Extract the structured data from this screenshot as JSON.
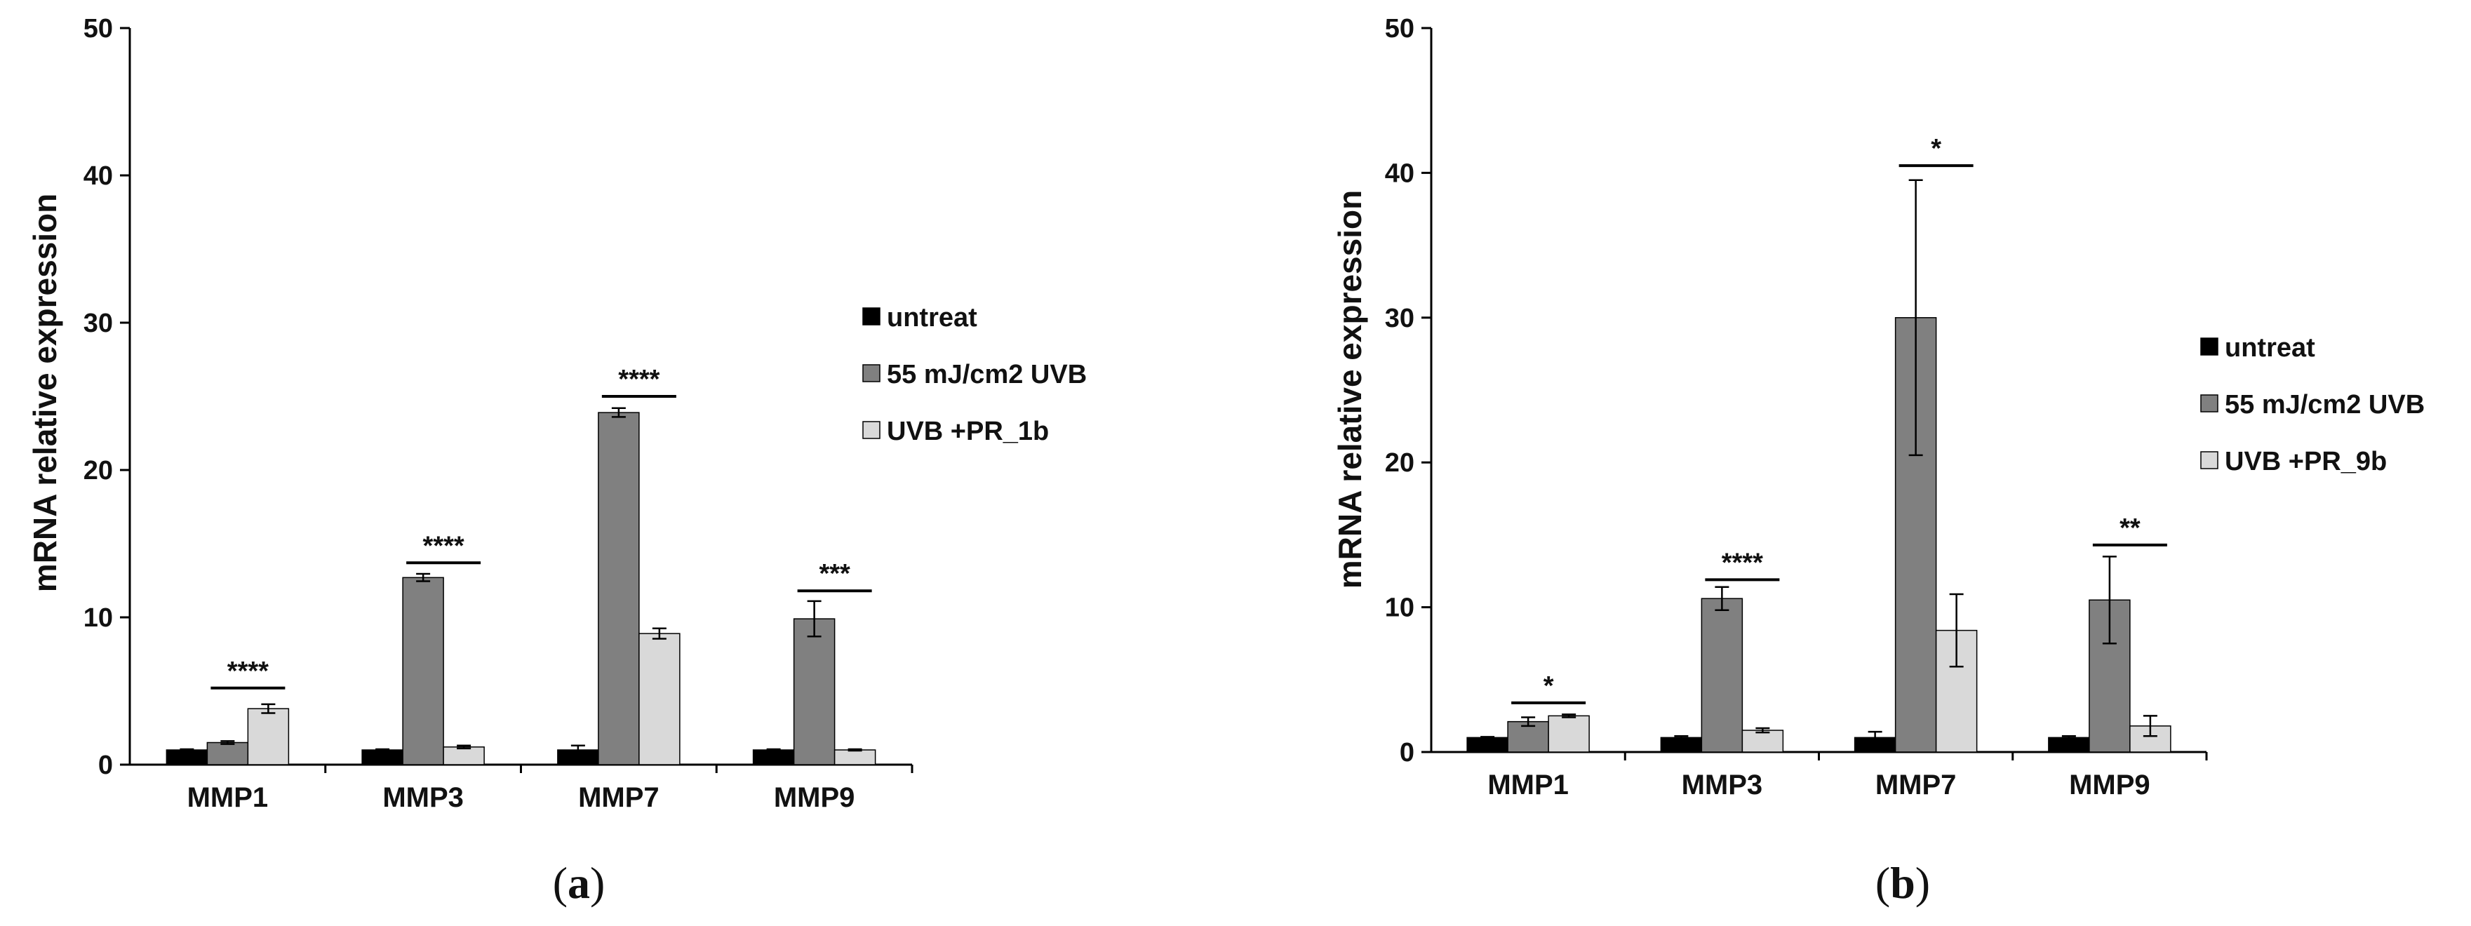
{
  "chart_data": [
    {
      "type": "bar",
      "panel": "(a)",
      "ylabel": "mRNA relative expression",
      "ylim": [
        0,
        50
      ],
      "yticks": [
        0,
        10,
        20,
        30,
        40,
        50
      ],
      "categories": [
        "MMP1",
        "MMP3",
        "MMP7",
        "MMP9"
      ],
      "series": [
        {
          "name": "untreat",
          "color": "#000000",
          "values": [
            1.0,
            1.0,
            1.0,
            1.0
          ],
          "errors": [
            0.05,
            0.05,
            0.3,
            0.05
          ]
        },
        {
          "name": "55 mJ/cm2 UVB",
          "color": "#808080",
          "values": [
            1.5,
            12.7,
            23.9,
            9.9
          ],
          "errors": [
            0.1,
            0.25,
            0.3,
            1.2
          ]
        },
        {
          "name": "UVB +PR_1b",
          "color": "#d9d9d9",
          "values": [
            3.8,
            1.2,
            8.9,
            1.0
          ],
          "errors": [
            0.3,
            0.1,
            0.35,
            0.05
          ]
        }
      ],
      "significance": [
        {
          "category": "MMP1",
          "y": 5.2,
          "label": "****"
        },
        {
          "category": "MMP3",
          "y": 13.7,
          "label": "****"
        },
        {
          "category": "MMP7",
          "y": 25.0,
          "label": "****"
        },
        {
          "category": "MMP9",
          "y": 11.8,
          "label": "***"
        }
      ],
      "legend": "right"
    },
    {
      "type": "bar",
      "panel": "(b)",
      "ylabel": "mRNA relative expression",
      "ylim": [
        0,
        50
      ],
      "yticks": [
        0,
        10,
        20,
        30,
        40,
        50
      ],
      "categories": [
        "MMP1",
        "MMP3",
        "MMP7",
        "MMP9"
      ],
      "series": [
        {
          "name": "untreat",
          "color": "#000000",
          "values": [
            1.0,
            1.0,
            1.0,
            1.0
          ],
          "errors": [
            0.05,
            0.1,
            0.4,
            0.1
          ]
        },
        {
          "name": "55 mJ/cm2 UVB",
          "color": "#808080",
          "values": [
            2.1,
            10.6,
            30.0,
            10.5
          ],
          "errors": [
            0.3,
            0.8,
            9.5,
            3.0
          ]
        },
        {
          "name": "UVB +PR_9b",
          "color": "#d9d9d9",
          "values": [
            2.5,
            1.5,
            8.4,
            1.8
          ],
          "errors": [
            0.1,
            0.15,
            2.5,
            0.7
          ]
        }
      ],
      "significance": [
        {
          "category": "MMP1",
          "y": 3.4,
          "label": "*"
        },
        {
          "category": "MMP3",
          "y": 11.9,
          "label": "****"
        },
        {
          "category": "MMP7",
          "y": 40.5,
          "label": "*"
        },
        {
          "category": "MMP9",
          "y": 14.3,
          "label": "**"
        }
      ],
      "legend": "right"
    }
  ]
}
